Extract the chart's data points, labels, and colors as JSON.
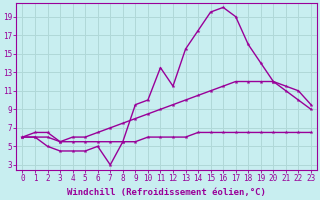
{
  "xlabel": "Windchill (Refroidissement éolien,°C)",
  "background_color": "#c8eef0",
  "grid_color": "#b0d8d8",
  "line_color": "#990099",
  "x_values": [
    0,
    1,
    2,
    3,
    4,
    5,
    6,
    7,
    8,
    9,
    10,
    11,
    12,
    13,
    14,
    15,
    16,
    17,
    18,
    19,
    20,
    21,
    22,
    23
  ],
  "line1": [
    6,
    6,
    5,
    4.5,
    4.5,
    4.5,
    5,
    3,
    5.5,
    9.5,
    10,
    13.5,
    11.5,
    15.5,
    17.5,
    19.5,
    20,
    19,
    16,
    14,
    12,
    11,
    10,
    9
  ],
  "line2": [
    6,
    6.5,
    6.5,
    5.5,
    6,
    6,
    6.5,
    7,
    7.5,
    8,
    8.5,
    9,
    9.5,
    10,
    10.5,
    11,
    11.5,
    12,
    12,
    12,
    12,
    11.5,
    11,
    9.5
  ],
  "line3": [
    6,
    6,
    6,
    5.5,
    5.5,
    5.5,
    5.5,
    5.5,
    5.5,
    5.5,
    6,
    6,
    6,
    6,
    6.5,
    6.5,
    6.5,
    6.5,
    6.5,
    6.5,
    6.5,
    6.5,
    6.5,
    6.5
  ],
  "ylim": [
    3,
    20
  ],
  "xlim": [
    0,
    23
  ],
  "yticks": [
    3,
    5,
    7,
    9,
    11,
    13,
    15,
    17,
    19
  ],
  "xticks": [
    0,
    1,
    2,
    3,
    4,
    5,
    6,
    7,
    8,
    9,
    10,
    11,
    12,
    13,
    14,
    15,
    16,
    17,
    18,
    19,
    20,
    21,
    22,
    23
  ],
  "marker": "*",
  "markersize": 3,
  "linewidth": 1.0,
  "xlabel_fontsize": 6.5,
  "tick_fontsize": 5.5
}
